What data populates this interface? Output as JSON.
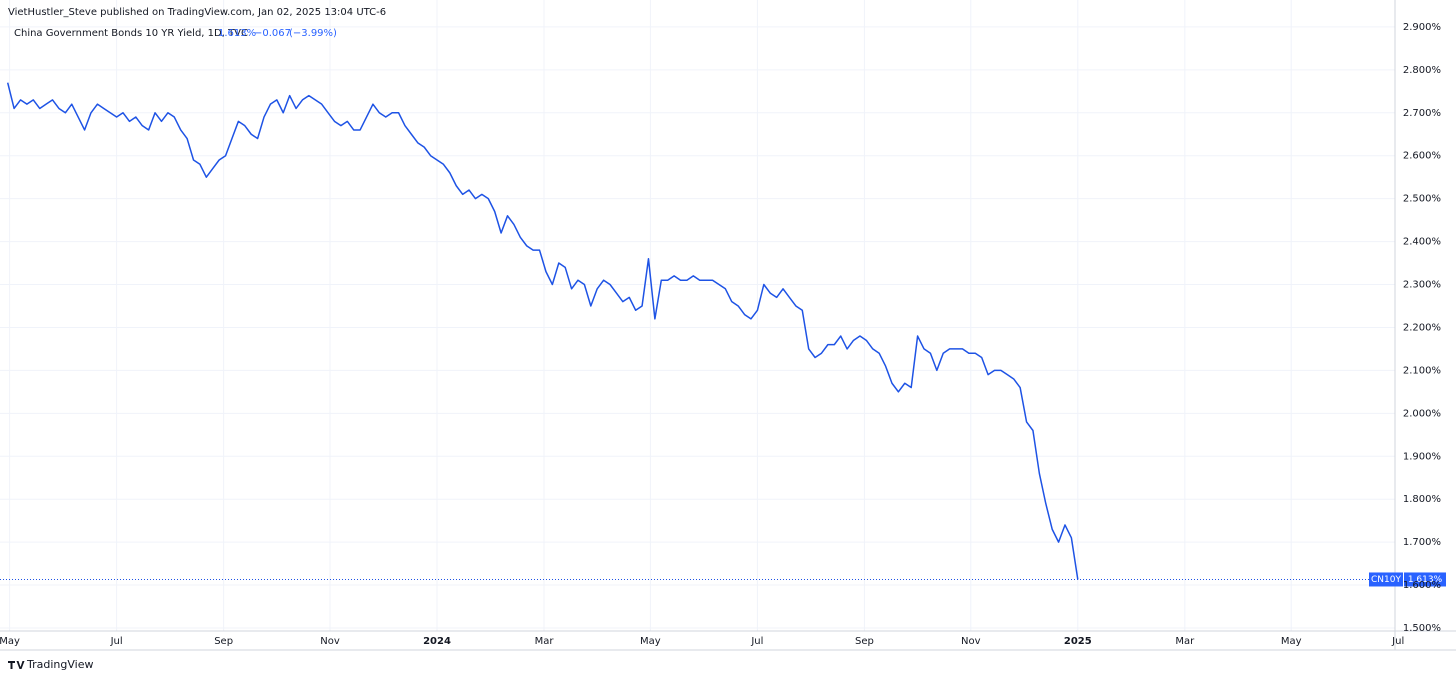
{
  "header": {
    "publisher": "VietHustler_Steve published on TradingView.com, Jan 02, 2025 13:04 UTC-6"
  },
  "footer": {
    "brand": "TradingView"
  },
  "legend": {
    "last": "1.613%",
    "change": "−0.067",
    "change_pct": "(−3.99%)",
    "symbol_tag": "CN10Y"
  },
  "chart_data": {
    "type": "line",
    "x": [
      2023.33,
      2023.34,
      2023.35,
      2023.36,
      2023.37,
      2023.38,
      2023.39,
      2023.4,
      2023.41,
      2023.42,
      2023.43,
      2023.44,
      2023.45,
      2023.46,
      2023.47,
      2023.48,
      2023.49,
      2023.5,
      2023.51,
      2023.52,
      2023.53,
      2023.54,
      2023.55,
      2023.56,
      2023.57,
      2023.58,
      2023.59,
      2023.6,
      2023.61,
      2023.62,
      2023.63,
      2023.64,
      2023.65,
      2023.66,
      2023.67,
      2023.68,
      2023.69,
      2023.7,
      2023.71,
      2023.72,
      2023.73,
      2023.74,
      2023.75,
      2023.76,
      2023.77,
      2023.78,
      2023.79,
      2023.8,
      2023.81,
      2023.82,
      2023.83,
      2023.84,
      2023.85,
      2023.86,
      2023.87,
      2023.88,
      2023.89,
      2023.9,
      2023.91,
      2023.92,
      2023.93,
      2023.94,
      2023.95,
      2023.96,
      2023.97,
      2023.98,
      2023.99,
      2024,
      2024.01,
      2024.02,
      2024.03,
      2024.04,
      2024.05,
      2024.06,
      2024.07,
      2024.08,
      2024.09,
      2024.1,
      2024.11,
      2024.12,
      2024.13,
      2024.14,
      2024.15,
      2024.16,
      2024.17,
      2024.18,
      2024.19,
      2024.2,
      2024.21,
      2024.22,
      2024.23,
      2024.24,
      2024.25,
      2024.26,
      2024.27,
      2024.28,
      2024.29,
      2024.3,
      2024.31,
      2024.32,
      2024.33,
      2024.34,
      2024.35,
      2024.36,
      2024.37,
      2024.38,
      2024.39,
      2024.4,
      2024.41,
      2024.42,
      2024.43,
      2024.44,
      2024.45,
      2024.46,
      2024.47,
      2024.48,
      2024.49,
      2024.5,
      2024.51,
      2024.52,
      2024.53,
      2024.54,
      2024.55,
      2024.56,
      2024.57,
      2024.58,
      2024.59,
      2024.6,
      2024.61,
      2024.62,
      2024.63,
      2024.64,
      2024.65,
      2024.66,
      2024.67,
      2024.68,
      2024.69,
      2024.7,
      2024.71,
      2024.72,
      2024.73,
      2024.74,
      2024.75,
      2024.76,
      2024.77,
      2024.78,
      2024.79,
      2024.8,
      2024.81,
      2024.82,
      2024.83,
      2024.84,
      2024.85,
      2024.86,
      2024.87,
      2024.88,
      2024.89,
      2024.9,
      2024.91,
      2024.92,
      2024.93,
      2024.94,
      2024.95,
      2024.96,
      2024.97,
      2024.98,
      2024.99,
      2025
    ],
    "series": [
      {
        "name": "China Government Bonds 10 YR Yield, 1D, TVC",
        "color": "#1e53e5",
        "values": [
          2.77,
          2.71,
          2.73,
          2.72,
          2.73,
          2.71,
          2.72,
          2.73,
          2.71,
          2.7,
          2.72,
          2.69,
          2.66,
          2.7,
          2.72,
          2.71,
          2.7,
          2.69,
          2.7,
          2.68,
          2.69,
          2.67,
          2.66,
          2.7,
          2.68,
          2.7,
          2.69,
          2.66,
          2.64,
          2.59,
          2.58,
          2.55,
          2.57,
          2.59,
          2.6,
          2.64,
          2.68,
          2.67,
          2.65,
          2.64,
          2.69,
          2.72,
          2.73,
          2.7,
          2.74,
          2.71,
          2.73,
          2.74,
          2.73,
          2.72,
          2.7,
          2.68,
          2.67,
          2.68,
          2.66,
          2.66,
          2.69,
          2.72,
          2.7,
          2.69,
          2.7,
          2.7,
          2.67,
          2.65,
          2.63,
          2.62,
          2.6,
          2.59,
          2.58,
          2.56,
          2.53,
          2.51,
          2.52,
          2.5,
          2.51,
          2.5,
          2.47,
          2.42,
          2.46,
          2.44,
          2.41,
          2.39,
          2.38,
          2.38,
          2.33,
          2.3,
          2.35,
          2.34,
          2.29,
          2.31,
          2.3,
          2.25,
          2.29,
          2.31,
          2.3,
          2.28,
          2.26,
          2.27,
          2.24,
          2.25,
          2.36,
          2.22,
          2.31,
          2.31,
          2.32,
          2.31,
          2.31,
          2.32,
          2.31,
          2.31,
          2.31,
          2.3,
          2.29,
          2.26,
          2.25,
          2.23,
          2.22,
          2.24,
          2.3,
          2.28,
          2.27,
          2.29,
          2.27,
          2.25,
          2.24,
          2.15,
          2.13,
          2.14,
          2.16,
          2.16,
          2.18,
          2.15,
          2.17,
          2.18,
          2.17,
          2.15,
          2.14,
          2.11,
          2.07,
          2.05,
          2.07,
          2.06,
          2.18,
          2.15,
          2.14,
          2.1,
          2.14,
          2.15,
          2.15,
          2.15,
          2.14,
          2.14,
          2.13,
          2.09,
          2.1,
          2.1,
          2.09,
          2.08,
          2.06,
          1.98,
          1.96,
          1.86,
          1.79,
          1.73,
          1.7,
          1.74,
          1.71,
          1.613
        ]
      }
    ],
    "xlim": [
      2023.318,
      2025.495
    ],
    "xticks": [
      {
        "value": 2023.333,
        "label": "May"
      },
      {
        "value": 2023.5,
        "label": "Jul"
      },
      {
        "value": 2023.667,
        "label": "Sep"
      },
      {
        "value": 2023.833,
        "label": "Nov"
      },
      2024,
      {
        "value": 2024.167,
        "label": "Mar"
      },
      {
        "value": 2024.333,
        "label": "May"
      },
      {
        "value": 2024.5,
        "label": "Jul"
      },
      {
        "value": 2024.667,
        "label": "Sep"
      },
      {
        "value": 2024.833,
        "label": "Nov"
      },
      2025,
      {
        "value": 2025.167,
        "label": "Mar"
      },
      {
        "value": 2025.333,
        "label": "May"
      },
      {
        "value": 2025.5,
        "label": "Jul"
      }
    ],
    "ylim": [
      1.493,
      2.951
    ],
    "yticks": [
      {
        "value": 1.5,
        "label": "1.500%"
      },
      {
        "value": 1.6,
        "label": "1.600%"
      },
      {
        "value": 1.7,
        "label": "1.700%"
      },
      {
        "value": 1.8,
        "label": "1.800%"
      },
      {
        "value": 1.9,
        "label": "1.900%"
      },
      {
        "value": 2.0,
        "label": "2.000%"
      },
      {
        "value": 2.1,
        "label": "2.100%"
      },
      {
        "value": 2.2,
        "label": "2.200%"
      },
      {
        "value": 2.3,
        "label": "2.300%"
      },
      {
        "value": 2.4,
        "label": "2.400%"
      },
      {
        "value": 2.5,
        "label": "2.500%"
      },
      {
        "value": 2.6,
        "label": "2.600%"
      },
      {
        "value": 2.7,
        "label": "2.700%"
      },
      {
        "value": 2.8,
        "label": "2.800%"
      },
      {
        "value": 2.9,
        "label": "2.900%"
      }
    ],
    "grid": true,
    "label_color": "#2962ff"
  }
}
